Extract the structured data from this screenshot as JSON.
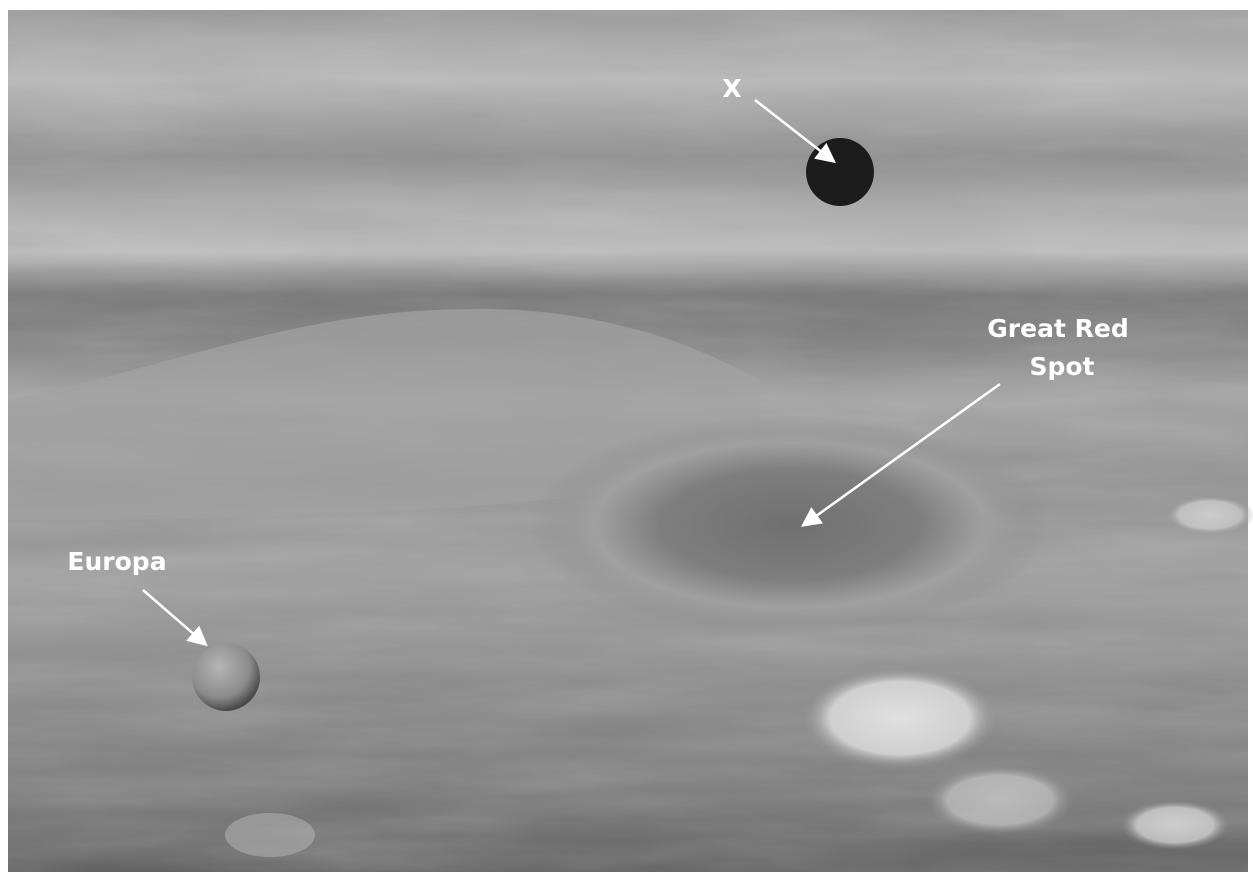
{
  "labels": {
    "moon_x": "X",
    "great_red_spot": {
      "lines": [
        "Great Red",
        "Spot"
      ]
    },
    "europa": "Europa"
  }
}
